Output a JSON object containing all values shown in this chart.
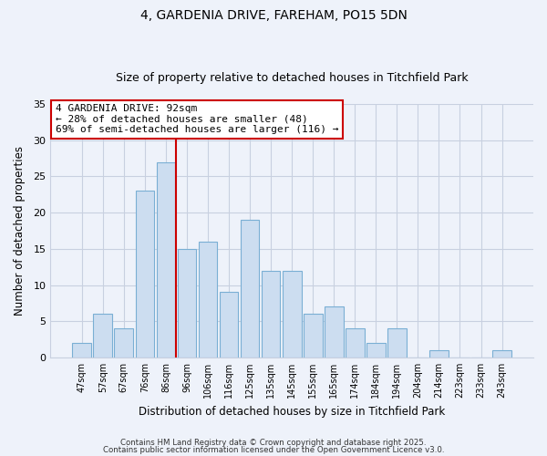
{
  "title1": "4, GARDENIA DRIVE, FAREHAM, PO15 5DN",
  "title2": "Size of property relative to detached houses in Titchfield Park",
  "xlabel": "Distribution of detached houses by size in Titchfield Park",
  "ylabel": "Number of detached properties",
  "bin_labels": [
    "47sqm",
    "57sqm",
    "67sqm",
    "76sqm",
    "86sqm",
    "96sqm",
    "106sqm",
    "116sqm",
    "125sqm",
    "135sqm",
    "145sqm",
    "155sqm",
    "165sqm",
    "174sqm",
    "184sqm",
    "194sqm",
    "204sqm",
    "214sqm",
    "223sqm",
    "233sqm",
    "243sqm"
  ],
  "bar_values": [
    2,
    6,
    4,
    23,
    27,
    15,
    16,
    9,
    19,
    12,
    12,
    6,
    7,
    4,
    2,
    4,
    0,
    1,
    0,
    0,
    1
  ],
  "bar_color": "#ccddf0",
  "bar_edge_color": "#7aafd4",
  "vline_index": 4.5,
  "vline_color": "#cc0000",
  "annotation_line1": "4 GARDENIA DRIVE: 92sqm",
  "annotation_line2": "← 28% of detached houses are smaller (48)",
  "annotation_line3": "69% of semi-detached houses are larger (116) →",
  "annotation_box_color": "#ffffff",
  "annotation_box_edge": "#cc0000",
  "ylim": [
    0,
    35
  ],
  "yticks": [
    0,
    5,
    10,
    15,
    20,
    25,
    30,
    35
  ],
  "footer1": "Contains HM Land Registry data © Crown copyright and database right 2025.",
  "footer2": "Contains public sector information licensed under the Open Government Licence v3.0.",
  "bg_color": "#eef2fa",
  "plot_bg_color": "#eef2fa",
  "grid_color": "#c8d0e0",
  "title_fontsize": 10,
  "subtitle_fontsize": 9
}
